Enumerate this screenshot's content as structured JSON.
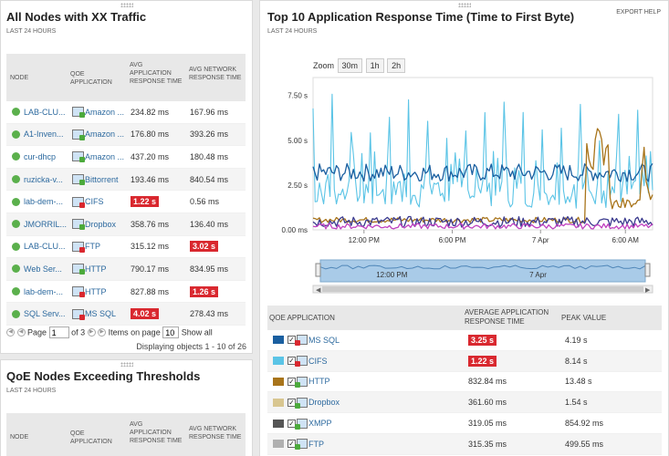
{
  "left_panel": {
    "title": "All Nodes with XX Traffic",
    "subtitle": "LAST 24 HOURS",
    "columns": [
      "NODE",
      "QOE APPLICATION",
      "AVG APPLICATION RESPONSE TIME",
      "AVG NETWORK RESPONSE TIME"
    ],
    "rows": [
      {
        "node": "LAB-CLU...",
        "app": "Amazon ...",
        "avg_app": "234.82 ms",
        "avg_net": "167.96 ms",
        "app_alert": false,
        "net_alert": false
      },
      {
        "node": "A1-Inven...",
        "app": "Amazon ...",
        "avg_app": "176.80 ms",
        "avg_net": "393.26 ms",
        "app_alert": false,
        "net_alert": false
      },
      {
        "node": "cur-dhcp",
        "app": "Amazon ...",
        "avg_app": "437.20 ms",
        "avg_net": "180.48 ms",
        "app_alert": false,
        "net_alert": false
      },
      {
        "node": "ruzicka-v...",
        "app": "Bittorrent",
        "avg_app": "193.46 ms",
        "avg_net": "840.54 ms",
        "app_alert": false,
        "net_alert": false
      },
      {
        "node": "lab-dem-...",
        "app": "CIFS",
        "avg_app": "1.22 s",
        "avg_net": "0.56 ms",
        "app_alert": true,
        "net_alert": false
      },
      {
        "node": "JMORRIL...",
        "app": "Dropbox",
        "avg_app": "358.76 ms",
        "avg_net": "136.40 ms",
        "app_alert": false,
        "net_alert": false
      },
      {
        "node": "LAB-CLU...",
        "app": "FTP",
        "avg_app": "315.12 ms",
        "avg_net": "3.02 s",
        "app_alert": false,
        "net_alert": true
      },
      {
        "node": "Web Ser...",
        "app": "HTTP",
        "avg_app": "790.17 ms",
        "avg_net": "834.95 ms",
        "app_alert": false,
        "net_alert": false
      },
      {
        "node": "lab-dem-...",
        "app": "HTTP",
        "avg_app": "827.88 ms",
        "avg_net": "1.26 s",
        "app_alert": false,
        "net_alert": true
      },
      {
        "node": "SQL Serv...",
        "app": "MS SQL",
        "avg_app": "4.02 s",
        "avg_net": "278.43 ms",
        "app_alert": true,
        "net_alert": false
      }
    ],
    "pager": {
      "page_label": "Page",
      "page_value": "1",
      "of_label": "of 3",
      "items_label": "Items on page",
      "items_value": "10",
      "show_all": "Show all",
      "displaying": "Displaying objects 1 - 10 of 26"
    }
  },
  "left_panel2": {
    "title": "QoE Nodes Exceeding Thresholds",
    "subtitle": "LAST 24 HOURS",
    "columns": [
      "NODE",
      "QOE APPLICATION",
      "AVG APPLICATION RESPONSE TIME",
      "AVG NETWORK RESPONSE TIME"
    ]
  },
  "right_panel": {
    "title": "Top 10 Application Response Time (Time to First Byte)",
    "subtitle": "LAST 24 HOURS",
    "export": "EXPORT",
    "help": "HELP",
    "zoom_label": "Zoom",
    "zoom_buttons": [
      "30m",
      "1h",
      "2h"
    ],
    "columns": [
      "QOE APPLICATION",
      "AVERAGE APPLICATION RESPONSE TIME",
      "PEAK VALUE"
    ],
    "rows": [
      {
        "name": "MS SQL",
        "avg": "3.25 s",
        "peak": "4.19 s",
        "alert": true,
        "color": "#1a5fa0"
      },
      {
        "name": "CIFS",
        "avg": "1.22 s",
        "peak": "8.14 s",
        "alert": true,
        "color": "#5bc4e6"
      },
      {
        "name": "HTTP",
        "avg": "832.84 ms",
        "peak": "13.48 s",
        "alert": false,
        "color": "#a8741a"
      },
      {
        "name": "Dropbox",
        "avg": "361.60 ms",
        "peak": "1.54 s",
        "alert": false,
        "color": "#d8c690"
      },
      {
        "name": "XMPP",
        "avg": "319.05 ms",
        "peak": "854.92 ms",
        "alert": false,
        "color": "#555555"
      },
      {
        "name": "FTP",
        "avg": "315.35 ms",
        "peak": "499.55 ms",
        "alert": false,
        "color": "#b0b0b0"
      }
    ]
  },
  "chart_data": {
    "type": "line",
    "y_ticks": [
      "7.50 s",
      "5.00 s",
      "2.50 s",
      "0.00 ms"
    ],
    "y_values": [
      7.5,
      5.0,
      2.5,
      0
    ],
    "x_ticks": [
      "12:00 PM",
      "6:00 PM",
      "7 Apr",
      "6:00 AM"
    ],
    "navigator_ticks": [
      "12:00 PM",
      "7 Apr"
    ],
    "ylim": [
      0,
      8.5
    ],
    "series": [
      {
        "name": "CIFS",
        "color": "#5bc4e6",
        "base": 1.2,
        "amp": 3.2,
        "spikes": [
          7.8,
          8.1,
          7.6,
          6.9
        ]
      },
      {
        "name": "MS SQL",
        "color": "#1a5fa0",
        "base": 3.2,
        "amp": 0.5
      },
      {
        "name": "HTTP",
        "color": "#a8741a",
        "base": 0.4,
        "amp": 0.3,
        "burst": [
          5.5,
          2.6
        ]
      },
      {
        "name": "XMPP",
        "color": "#3b3b8e",
        "base": 0.45,
        "amp": 0.3
      },
      {
        "name": "Dropbox",
        "color": "#c040c0",
        "base": 0.2,
        "amp": 0.15
      }
    ]
  }
}
